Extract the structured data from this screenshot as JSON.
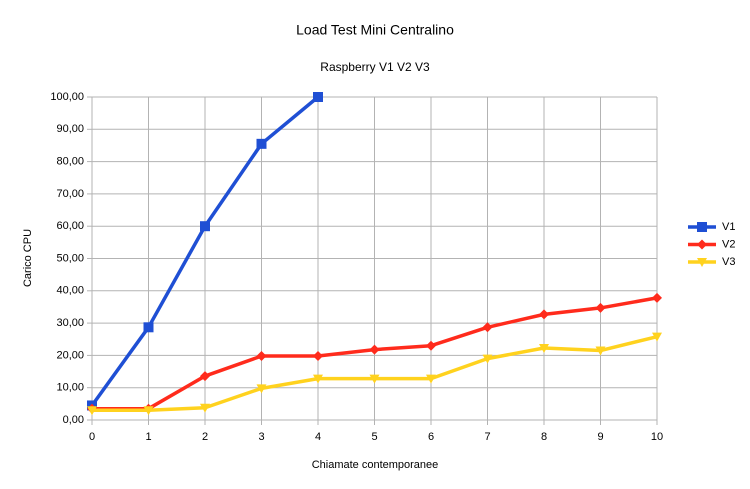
{
  "chart_data": {
    "type": "line",
    "title": "Load Test Mini Centralino",
    "subtitle": "Raspberry V1 V2 V3",
    "x_label": "Chiamate contemporanee",
    "y_label": "Carico CPU",
    "x": [
      0,
      1,
      2,
      3,
      4,
      5,
      6,
      7,
      8,
      9,
      10
    ],
    "series": [
      {
        "name": "V1",
        "color": "#1f4fd4",
        "marker": "square",
        "values": [
          4.5,
          28.7,
          60,
          85.5,
          100,
          null,
          null,
          null,
          null,
          null,
          null
        ]
      },
      {
        "name": "V2",
        "color": "#ff2b1c",
        "marker": "diamond",
        "values": [
          3.5,
          3.5,
          13.6,
          19.8,
          19.8,
          21.8,
          23,
          28.7,
          32.7,
          34.7,
          37.8
        ]
      },
      {
        "name": "V3",
        "color": "#ffd21e",
        "marker": "triangle-down",
        "values": [
          3,
          3,
          3.8,
          9.8,
          12.8,
          12.8,
          12.8,
          19,
          22.3,
          21.5,
          25.8
        ]
      }
    ],
    "xlim": [
      0,
      10
    ],
    "xticks": [
      0,
      1,
      2,
      3,
      4,
      5,
      6,
      7,
      8,
      9,
      10
    ],
    "ylim": [
      0,
      100
    ],
    "yticks": [
      {
        "value": 0,
        "label": "0,00"
      },
      {
        "value": 10,
        "label": "10,00"
      },
      {
        "value": 20,
        "label": "20,00"
      },
      {
        "value": 30,
        "label": "30,00"
      },
      {
        "value": 40,
        "label": "40,00"
      },
      {
        "value": 50,
        "label": "50,00"
      },
      {
        "value": 60,
        "label": "60,00"
      },
      {
        "value": 70,
        "label": "70,00"
      },
      {
        "value": 80,
        "label": "80,00"
      },
      {
        "value": 90,
        "label": "90,00"
      },
      {
        "value": 100,
        "label": "100,00"
      }
    ],
    "grid": true,
    "legend": "right"
  }
}
